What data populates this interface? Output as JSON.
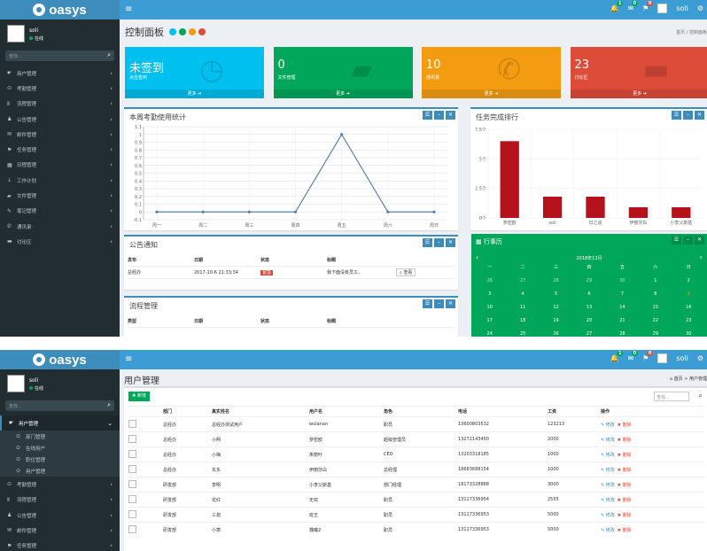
{
  "brand": "oasys",
  "user": {
    "name": "soli",
    "status": "在线"
  },
  "search_placeholder": "查找...",
  "topbar": {
    "badge1": "1",
    "badge2": "0",
    "badge3": "0",
    "username": "soli"
  },
  "shot1": {
    "nav": [
      {
        "icon": "☛",
        "label": "用户管理"
      },
      {
        "icon": "⊙",
        "label": "考勤管理"
      },
      {
        "icon": "Ⅱ",
        "label": "流程管理"
      },
      {
        "icon": "♟",
        "label": "公告管理"
      },
      {
        "icon": "✉",
        "label": "邮件管理"
      },
      {
        "icon": "⚑",
        "label": "任务管理"
      },
      {
        "icon": "▦",
        "label": "日程管理"
      },
      {
        "icon": "⇣",
        "label": "工作计划"
      },
      {
        "icon": "▰",
        "label": "文件管理"
      },
      {
        "icon": "✎",
        "label": "笔记管理"
      },
      {
        "icon": "✆",
        "label": "通讯录"
      },
      {
        "icon": "▬",
        "label": "讨论区"
      }
    ],
    "page_title": "控制面板",
    "title_dot_colors": [
      "#00c0ef",
      "#00a65a",
      "#f39c12",
      "#dd4b39"
    ],
    "breadcrumb": "首页 / 控制面板",
    "info_boxes": [
      {
        "num": "未签到",
        "label": "点击签到",
        "more": "更多",
        "color": "#00c0ef",
        "icon": "clock-icon",
        "glyph": "◷"
      },
      {
        "num": "0",
        "label": "文件管理",
        "more": "更多",
        "color": "#00a65a",
        "icon": "folder-icon",
        "glyph": "▰"
      },
      {
        "num": "10",
        "label": "通讯录",
        "more": "更多",
        "color": "#f39c12",
        "icon": "phone-icon",
        "glyph": "✆"
      },
      {
        "num": "23",
        "label": "讨论区",
        "more": "更多",
        "color": "#dd4b39",
        "icon": "comment-icon",
        "glyph": "▬"
      }
    ],
    "line_box_title": "本周考勤使用统计",
    "bar_box_title": "任务完成排行",
    "notice_box": {
      "title": "公告通知",
      "headers": [
        "发布",
        "日期",
        "状态",
        "标题"
      ],
      "rows": [
        {
          "pub": "总经办",
          "date": "2017-10-6 21:33:34",
          "status": "紧急",
          "title": "我下面没有员工。",
          "action": "查看"
        }
      ]
    },
    "process_box": {
      "title": "流程管理",
      "headers": [
        "类型",
        "日期",
        "状态",
        "标题"
      ]
    },
    "calendar": {
      "title": "行事历",
      "month": "2018年12月",
      "weekdays": [
        "一",
        "二",
        "三",
        "四",
        "五",
        "六",
        "日"
      ],
      "days": [
        "26",
        "27",
        "28",
        "29",
        "30",
        "1",
        "2",
        "3",
        "4",
        "5",
        "6",
        "7",
        "8",
        "9",
        "10",
        "11",
        "12",
        "13",
        "14",
        "15",
        "16",
        "17",
        "18",
        "19",
        "20",
        "21",
        "22",
        "23",
        "24",
        "25",
        "26",
        "27",
        "28",
        "29",
        "30"
      ]
    }
  },
  "chart_data": [
    {
      "type": "line",
      "categories": [
        "周一",
        "周二",
        "周三",
        "周四",
        "周五",
        "周六",
        "周日"
      ],
      "values": [
        0,
        0,
        0,
        0,
        1,
        0,
        0
      ],
      "ylim": [
        -0.1,
        1.1
      ],
      "yticks": [
        "1.1",
        "1",
        "0.9",
        "0.8",
        "0.7",
        "0.6",
        "0.5",
        "0.4",
        "0.3",
        "0.2",
        "0.1",
        "0",
        "-0.1"
      ],
      "grid": true
    },
    {
      "type": "bar",
      "categories": [
        "罗密欧",
        "soli",
        "日之说",
        "伊丽莎白",
        "小李父斯基"
      ],
      "values": [
        6.5,
        1.8,
        1.8,
        0.9,
        0.9
      ],
      "ylim": [
        0,
        7.5
      ],
      "yticks": [
        "7.5个",
        "5个",
        "2.5个",
        "0个"
      ],
      "color": "#b5121b"
    }
  ],
  "shot2": {
    "page_title": "用户管理",
    "breadcrumb": "首页 > 用户管理",
    "add_label": "新增",
    "search_placeholder": "查找...",
    "nav_top": [
      {
        "icon": "☛",
        "label": "用户管理"
      }
    ],
    "nav_sub": [
      {
        "icon": "⊙",
        "label": "部门管理"
      },
      {
        "icon": "⊙",
        "label": "在线用户"
      },
      {
        "icon": "⊙",
        "label": "职位管理"
      },
      {
        "icon": "⊙",
        "label": "用户管理"
      }
    ],
    "nav_bottom": [
      {
        "icon": "⊙",
        "label": "考勤管理"
      },
      {
        "icon": "Ⅱ",
        "label": "流程管理"
      },
      {
        "icon": "♟",
        "label": "公告管理"
      },
      {
        "icon": "✉",
        "label": "邮件管理"
      },
      {
        "icon": "⚑",
        "label": "任务管理"
      }
    ],
    "headers": [
      "部门",
      "真实姓名",
      "用户名",
      "角色",
      "电话",
      "工资",
      "操作"
    ],
    "edit_label": "修改",
    "delete_label": "删除",
    "rows": [
      {
        "dept": "总经办",
        "real": "总经办测试用户",
        "user": "wulanan",
        "role": "职员",
        "tel": "13600803532",
        "sal": "123213"
      },
      {
        "dept": "总经办",
        "real": "小明",
        "user": "罗密欧",
        "role": "超级管理员",
        "tel": "13272143450",
        "sal": "2000"
      },
      {
        "dept": "总经办",
        "real": "小梅",
        "user": "朱丽叶",
        "role": "CEO",
        "tel": "13203318185",
        "sal": "1000"
      },
      {
        "dept": "总经办",
        "real": "东东",
        "user": "伊丽莎白",
        "role": "总经理",
        "tel": "18683688154",
        "sal": "1000"
      },
      {
        "dept": "研发部",
        "real": "李明",
        "user": "小李父斯基",
        "role": "部门经理",
        "tel": "18173328888",
        "sal": "3000"
      },
      {
        "dept": "研发部",
        "real": "花红",
        "user": "无双",
        "role": "职员",
        "tel": "13117336954",
        "sal": "2555"
      },
      {
        "dept": "研发部",
        "real": "三炮",
        "user": "班王",
        "role": "职员",
        "tel": "13117336953",
        "sal": "5000"
      },
      {
        "dept": "研发部",
        "real": "小萧",
        "user": "魏曦2",
        "role": "职员",
        "tel": "13117336953",
        "sal": "5000"
      }
    ]
  }
}
